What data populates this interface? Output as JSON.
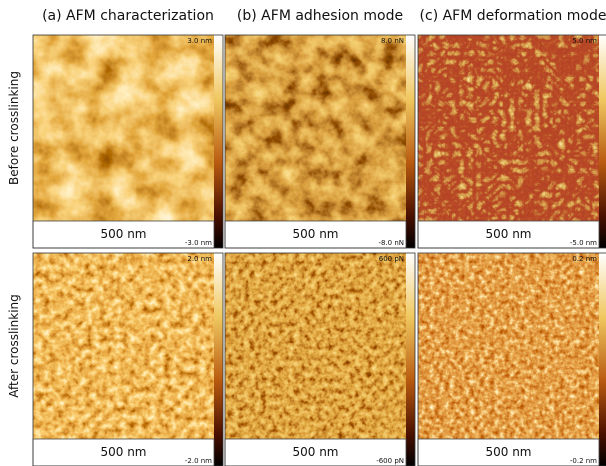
{
  "columns": [
    "(a) AFM characterization",
    "(b) AFM adhesion mode",
    "(c) AFM deformation mode"
  ],
  "rows": [
    "Before crosslinking",
    "After crosslinking"
  ],
  "panels": [
    [
      {
        "scale_bar": "500 nm",
        "colorbar_max": "3.0 nm",
        "colorbar_min": "-3.0 nm"
      },
      {
        "scale_bar": "500 nm",
        "colorbar_max": "8.0 nN",
        "colorbar_min": "-8.0 nN"
      },
      {
        "scale_bar": "500 nm",
        "colorbar_max": "5.0 nm",
        "colorbar_min": "-5.0 nm"
      }
    ],
    [
      {
        "scale_bar": "500 nm",
        "colorbar_max": "2.0 nm",
        "colorbar_min": "-2.0 nm"
      },
      {
        "scale_bar": "500 nm",
        "colorbar_max": "600 pN",
        "colorbar_min": "-600 pN"
      },
      {
        "scale_bar": "500 nm",
        "colorbar_max": "0.2 nm",
        "colorbar_min": "-0.2 nm"
      }
    ]
  ]
}
